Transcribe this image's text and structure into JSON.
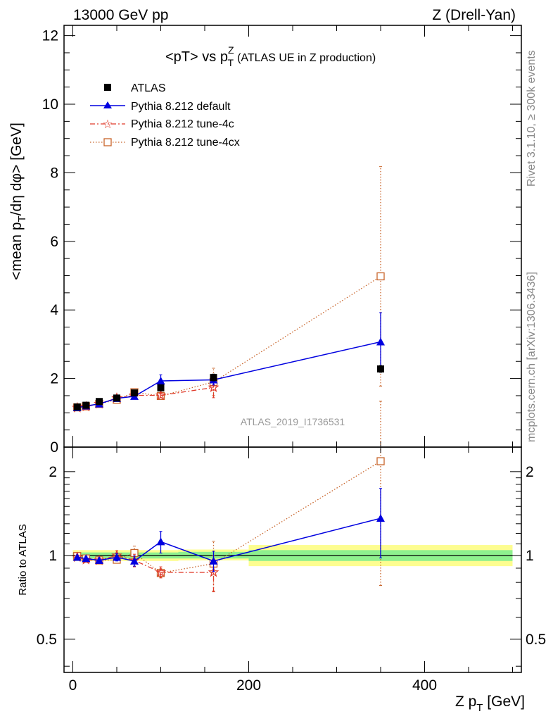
{
  "header": {
    "left": "13000 GeV pp",
    "right": "Z (Drell-Yan)"
  },
  "side": {
    "rivet": "Rivet 3.1.10, ≥ 300k events",
    "mcplots": "mcplots.cern.ch [arXiv:1306.3436]"
  },
  "colors": {
    "atlas": "#000000",
    "default": "#0000e0",
    "tune4c": "#e03a2a",
    "tune4cx": "#c8642a",
    "band_inner": "#8ef08e",
    "band_outer": "#fdfd90"
  },
  "chart_data": [
    {
      "type": "scatter",
      "panel": "main",
      "title_main": "<pT> vs p",
      "title_sup": "Z",
      "title_sub": "T",
      "title_suffix": "(ATLAS UE in Z production)",
      "ylabel_parts": [
        "<mean p",
        "T",
        "/dη dφ> [GeV]"
      ],
      "ylim": [
        0,
        12.3
      ],
      "yticks": [
        0,
        2,
        4,
        6,
        8,
        10,
        12
      ],
      "ytick_labels": [
        "0",
        "2",
        "4",
        "6",
        "8",
        "10",
        "12"
      ],
      "xlim": [
        -10,
        510
      ],
      "watermark": "ATLAS_2019_I1736531",
      "legend_position": "top-left",
      "x": [
        5,
        15,
        30,
        50,
        70,
        100,
        160,
        350
      ],
      "series": [
        {
          "name": "ATLAS",
          "color_key": "atlas",
          "marker": "square-filled",
          "values": [
            1.17,
            1.22,
            1.33,
            1.43,
            1.58,
            1.73,
            2.03,
            2.28
          ],
          "err": [
            0.03,
            0.03,
            0.03,
            0.04,
            0.05,
            0.07,
            0.1,
            0.1
          ]
        },
        {
          "name": "Pythia 8.212 default",
          "color_key": "default",
          "marker": "triangle-filled",
          "line": "solid",
          "values": [
            1.15,
            1.2,
            1.26,
            1.42,
            1.48,
            1.93,
            1.96,
            3.07
          ],
          "err": [
            0.02,
            0.02,
            0.03,
            0.05,
            0.06,
            0.18,
            0.15,
            0.85
          ]
        },
        {
          "name": "Pythia 8.212 tune-4c",
          "color_key": "tune4c",
          "marker": "star",
          "line": "dashdot",
          "values": [
            1.15,
            1.18,
            1.26,
            1.43,
            1.51,
            1.51,
            1.74,
            null
          ],
          "err": [
            0.02,
            0.02,
            0.03,
            0.06,
            0.08,
            0.07,
            0.3,
            null
          ]
        },
        {
          "name": "Pythia 8.212 tune-4cx",
          "color_key": "tune4cx",
          "marker": "square-open",
          "line": "dotted",
          "values": [
            1.16,
            1.19,
            1.26,
            1.38,
            1.6,
            1.49,
            1.9,
            4.98
          ],
          "err": [
            0.02,
            0.02,
            0.03,
            0.04,
            0.1,
            0.06,
            0.4,
            3.2
          ]
        }
      ]
    },
    {
      "type": "scatter",
      "panel": "ratio",
      "ylabel": "Ratio to ATLAS",
      "xlabel_main": "Z p",
      "xlabel_sub": "T",
      "xlabel_suffix": " [GeV]",
      "log_y": true,
      "ylim": [
        0.38,
        2.45
      ],
      "yticks": [
        0.5,
        1,
        2
      ],
      "ytick_labels": [
        "0.5",
        "1",
        "2"
      ],
      "xlim": [
        -10,
        510
      ],
      "xticks": [
        0,
        200,
        400
      ],
      "xtick_labels": [
        "0",
        "200",
        "400"
      ],
      "bands": [
        {
          "x0": 0,
          "x1": 10,
          "inner": [
            0.975,
            1.025
          ],
          "outer": [
            0.955,
            1.045
          ]
        },
        {
          "x0": 10,
          "x1": 20,
          "inner": [
            0.975,
            1.025
          ],
          "outer": [
            0.955,
            1.045
          ]
        },
        {
          "x0": 20,
          "x1": 40,
          "inner": [
            0.975,
            1.025
          ],
          "outer": [
            0.955,
            1.045
          ]
        },
        {
          "x0": 40,
          "x1": 60,
          "inner": [
            0.975,
            1.025
          ],
          "outer": [
            0.955,
            1.045
          ]
        },
        {
          "x0": 60,
          "x1": 80,
          "inner": [
            0.975,
            1.025
          ],
          "outer": [
            0.955,
            1.045
          ]
        },
        {
          "x0": 80,
          "x1": 120,
          "inner": [
            0.975,
            1.025
          ],
          "outer": [
            0.955,
            1.045
          ]
        },
        {
          "x0": 120,
          "x1": 200,
          "inner": [
            0.975,
            1.03
          ],
          "outer": [
            0.96,
            1.05
          ]
        },
        {
          "x0": 200,
          "x1": 500,
          "inner": [
            0.955,
            1.045
          ],
          "outer": [
            0.915,
            1.09
          ]
        }
      ],
      "x": [
        5,
        15,
        30,
        50,
        70,
        100,
        160,
        350
      ],
      "series": [
        {
          "name": "Pythia 8.212 default",
          "color_key": "default",
          "marker": "triangle-filled",
          "line": "solid",
          "values": [
            0.985,
            0.975,
            0.96,
            0.985,
            0.955,
            1.12,
            0.955,
            1.36
          ],
          "err": [
            0.015,
            0.015,
            0.015,
            0.03,
            0.04,
            0.1,
            0.08,
            0.38
          ]
        },
        {
          "name": "Pythia 8.212 tune-4c",
          "color_key": "tune4c",
          "marker": "star",
          "line": "dashdot",
          "values": [
            0.985,
            0.965,
            0.96,
            1.0,
            0.96,
            0.87,
            0.87,
            null
          ],
          "err": [
            0.015,
            0.015,
            0.015,
            0.04,
            0.05,
            0.04,
            0.13,
            null
          ]
        },
        {
          "name": "Pythia 8.212 tune-4cx",
          "color_key": "tune4cx",
          "marker": "square-open",
          "line": "dotted",
          "values": [
            0.995,
            0.975,
            0.96,
            0.965,
            1.02,
            0.865,
            0.935,
            2.18
          ],
          "err": [
            0.015,
            0.015,
            0.015,
            0.025,
            0.06,
            0.03,
            0.19,
            1.4
          ]
        }
      ]
    }
  ]
}
